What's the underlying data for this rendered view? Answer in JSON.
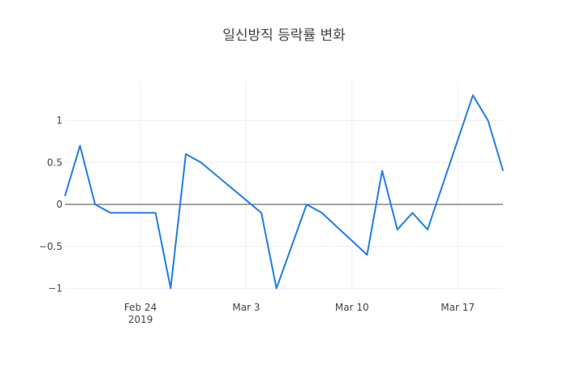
{
  "chart_data": {
    "type": "line",
    "title": "일신방직 등락률 변화",
    "xlabel": "",
    "ylabel": "",
    "x": [
      "2019-02-19",
      "2019-02-20",
      "2019-02-21",
      "2019-02-22",
      "2019-02-25",
      "2019-02-26",
      "2019-02-27",
      "2019-02-28",
      "2019-03-04",
      "2019-03-05",
      "2019-03-06",
      "2019-03-07",
      "2019-03-08",
      "2019-03-11",
      "2019-03-12",
      "2019-03-13",
      "2019-03-14",
      "2019-03-15",
      "2019-03-18",
      "2019-03-19",
      "2019-03-20"
    ],
    "series": [
      {
        "name": "등락률",
        "color": "#1f7de6",
        "values": [
          0.1,
          0.7,
          0.0,
          -0.1,
          -0.1,
          -1.0,
          0.6,
          0.5,
          -0.1,
          -1.0,
          -0.5,
          0.0,
          -0.1,
          -0.6,
          0.4,
          -0.3,
          -0.1,
          -0.3,
          1.3,
          1.0,
          0.4
        ]
      }
    ],
    "x_ticks": [
      {
        "date": "2019-02-24",
        "label": "Feb 24",
        "sublabel": "2019"
      },
      {
        "date": "2019-03-03",
        "label": "Mar 3",
        "sublabel": ""
      },
      {
        "date": "2019-03-10",
        "label": "Mar 10",
        "sublabel": ""
      },
      {
        "date": "2019-03-17",
        "label": "Mar 17",
        "sublabel": ""
      }
    ],
    "y_ticks": [
      {
        "value": 1,
        "label": "1"
      },
      {
        "value": 0.5,
        "label": "0.5"
      },
      {
        "value": 0,
        "label": "0"
      },
      {
        "value": -0.5,
        "label": "−0.5"
      },
      {
        "value": -1,
        "label": "−1"
      }
    ],
    "xlim": [
      "2019-02-19",
      "2019-03-20"
    ],
    "ylim": [
      -1.03,
      1.43
    ],
    "grid": true,
    "zero_line": true,
    "legend": "none"
  }
}
